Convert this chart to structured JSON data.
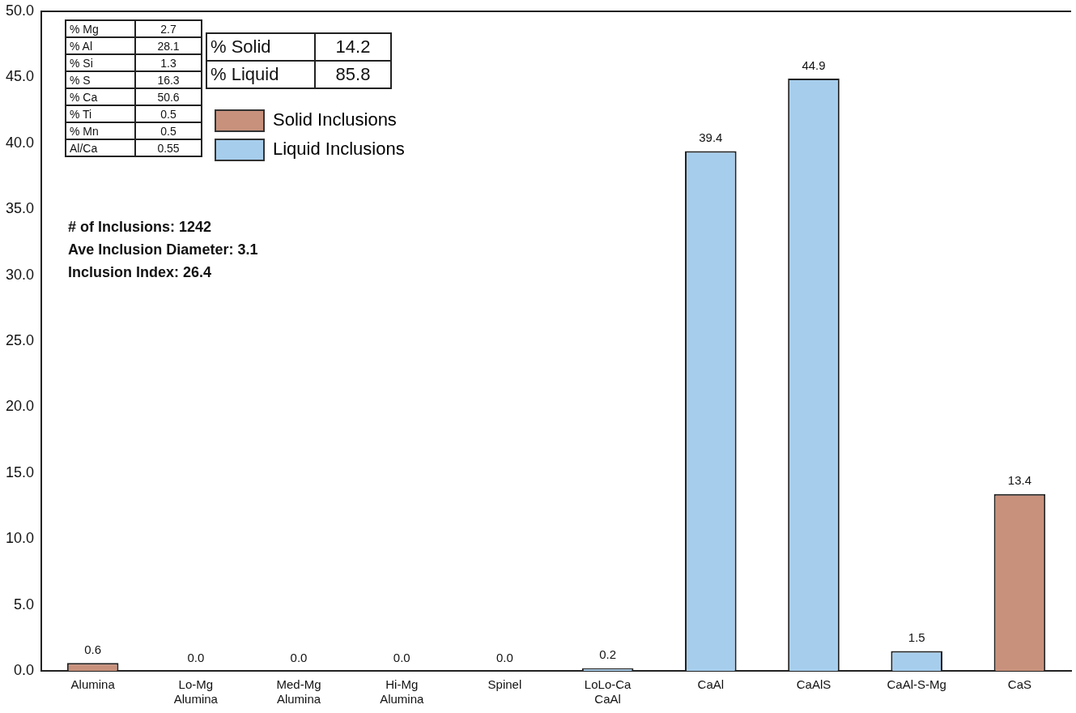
{
  "chart_data": {
    "type": "bar",
    "categories": [
      "Alumina",
      "Lo-Mg Alumina",
      "Med-Mg Alumina",
      "Hi-Mg Alumina",
      "Spinel",
      "LoLo-Ca CaAl",
      "CaAl",
      "CaAlS",
      "CaAl-S-Mg",
      "CaS"
    ],
    "series": [
      {
        "name": "Solid Inclusions",
        "color": "#c8917c",
        "values": [
          0.6,
          0,
          0,
          0,
          0,
          null,
          null,
          null,
          null,
          13.4
        ],
        "value_labels": [
          "0.6",
          "0.0",
          "0.0",
          "0.0",
          "0.0",
          null,
          null,
          null,
          null,
          "13.4"
        ]
      },
      {
        "name": "Liquid Inclusions",
        "color": "#a6cdec",
        "values": [
          null,
          null,
          null,
          null,
          null,
          0.2,
          39.4,
          44.9,
          1.5,
          null
        ],
        "value_labels": [
          null,
          null,
          null,
          null,
          null,
          "0.2",
          "39.4",
          "44.9",
          "1.5",
          null
        ]
      }
    ],
    "ylim": [
      0,
      50
    ],
    "yticks": [
      {
        "value": 0,
        "label": "0.0"
      },
      {
        "value": 5,
        "label": "5.0"
      },
      {
        "value": 10,
        "label": "10.0"
      },
      {
        "value": 15,
        "label": "15.0"
      },
      {
        "value": 20,
        "label": "20.0"
      },
      {
        "value": 25,
        "label": "25.0"
      },
      {
        "value": 30,
        "label": "30.0"
      },
      {
        "value": 35,
        "label": "35.0"
      },
      {
        "value": 40,
        "label": "40.0"
      },
      {
        "value": 45,
        "label": "45.0"
      },
      {
        "value": 50,
        "label": "50.0"
      }
    ],
    "grid": false,
    "legend": "top left",
    "annotations": [
      "% Mg",
      "2.7",
      "% Al",
      "28.1",
      "% Si",
      "1.3",
      "% S",
      "16.3",
      "% Ca",
      "50.6",
      "% Ti",
      "0.5",
      "% Mn",
      "0.5",
      "Al/Ca",
      "0.55",
      "% Solid",
      "14.2",
      "% Liquid",
      "85.8",
      "# of Inclusions: 1242",
      "Ave Inclusion Diameter: 3.1",
      "Inclusion Index: 26.4"
    ]
  }
}
